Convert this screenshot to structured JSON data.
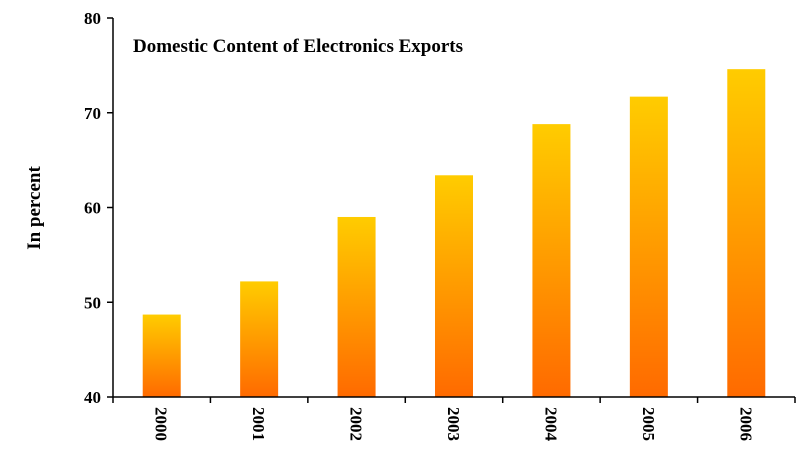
{
  "chart_data": {
    "type": "bar",
    "title": "Domestic Content of Electronics Exports",
    "xlabel": "",
    "ylabel": "In percent",
    "categories": [
      "2000",
      "2001",
      "2002",
      "2003",
      "2004",
      "2005",
      "2006"
    ],
    "values": [
      48.7,
      52.2,
      59.0,
      63.4,
      68.8,
      71.7,
      74.6
    ],
    "ylim": [
      40,
      80
    ],
    "yticks": [
      "40",
      "50",
      "60",
      "70",
      "80"
    ],
    "grid": false,
    "bar_gradient": {
      "top": "#ffcc00",
      "bottom": "#ff6a00"
    },
    "axis_color": "#000000"
  }
}
